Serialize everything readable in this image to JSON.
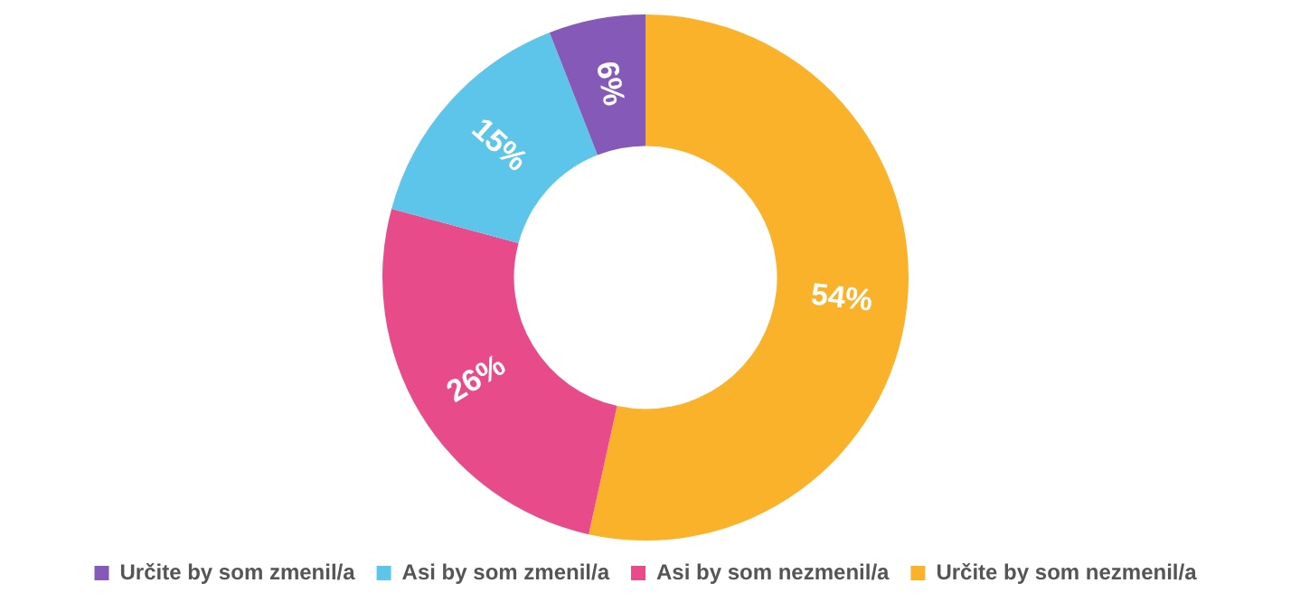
{
  "chart_data": {
    "type": "donut",
    "categories": [
      "Určite by som nezmenil/a",
      "Asi by som nezmenil/a",
      "Asi by som zmenil/a",
      "Určite by som zmenil/a"
    ],
    "values": [
      54,
      26,
      15,
      6
    ],
    "value_labels": [
      "54%",
      "26%",
      "15%",
      "6%"
    ],
    "colors": [
      "#fbb22b",
      "#e84b8a",
      "#5ec5ea",
      "#8559b8"
    ],
    "legend": "bottom"
  }
}
